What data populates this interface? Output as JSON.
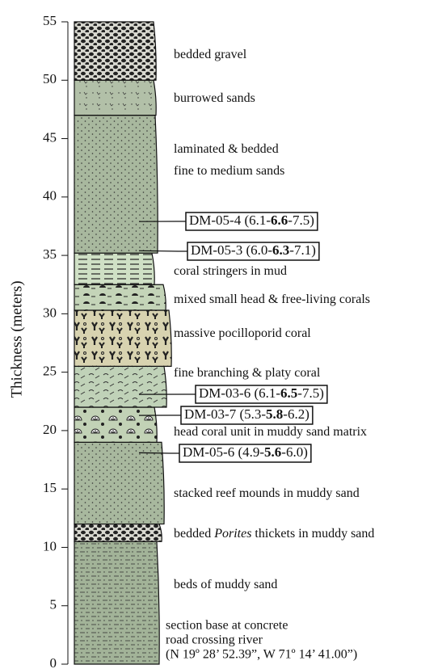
{
  "axis": {
    "label": "Thickness (meters)",
    "min": 0,
    "max": 55,
    "ticks": [
      0,
      5,
      10,
      15,
      20,
      25,
      30,
      35,
      40,
      45,
      50,
      55
    ]
  },
  "layers": [
    {
      "bottom": 0,
      "top": 10.5,
      "lines": [
        [
          "beds of muddy sand"
        ]
      ]
    },
    {
      "bottom": 10.5,
      "top": 12,
      "lines": [
        [
          "bedded ",
          {
            "text": "Porites",
            "italic": true
          },
          " thickets in muddy sand"
        ]
      ]
    },
    {
      "bottom": 12,
      "top": 19,
      "lines": [
        [
          "stacked reef mounds in muddy sand"
        ]
      ]
    },
    {
      "bottom": 19,
      "top": 22,
      "lines": [
        [
          "head coral unit in muddy sand matrix"
        ]
      ]
    },
    {
      "bottom": 22,
      "top": 25.5,
      "lines": [
        [
          "fine branching & platy coral"
        ]
      ]
    },
    {
      "bottom": 25.5,
      "top": 30.3,
      "lines": [
        [
          "massive pocilloporid coral"
        ]
      ]
    },
    {
      "bottom": 30.3,
      "top": 32.5,
      "lines": [
        [
          "mixed small head & free-living corals"
        ]
      ]
    },
    {
      "bottom": 32.5,
      "top": 35.2,
      "lines": [
        [
          "coral stringers in mud"
        ]
      ]
    },
    {
      "bottom": 35.2,
      "top": 47,
      "lines": [
        [
          "laminated & bedded"
        ],
        [
          "fine to medium sands"
        ]
      ]
    },
    {
      "bottom": 47,
      "top": 50,
      "lines": [
        [
          "burrowed sands"
        ]
      ]
    },
    {
      "bottom": 50,
      "top": 55,
      "lines": [
        [
          "bedded gravel"
        ]
      ]
    }
  ],
  "base_note": [
    "section base at concrete",
    "road crossing river",
    "(N 19º 28’ 52.39”, W 71º 14’ 41.00”)"
  ],
  "samples": [
    {
      "label": [
        "DM-05-4 (6.1-",
        "6.6",
        "-7.5)"
      ],
      "at": 37.9
    },
    {
      "label": [
        "DM-05-3 (6.0-",
        "6.3",
        "-7.1)"
      ],
      "at": 35.4
    },
    {
      "label": [
        "DM-03-6 (6.1-",
        "6.5",
        "-7.5)"
      ],
      "at": 23.1
    },
    {
      "label": [
        "DM-03-7 (5.3-",
        "5.8",
        "-6.2)"
      ],
      "at": 21.3
    },
    {
      "label": [
        "DM-05-6 (4.9-",
        "5.6",
        "-6.0)"
      ],
      "at": 18.1
    }
  ]
}
